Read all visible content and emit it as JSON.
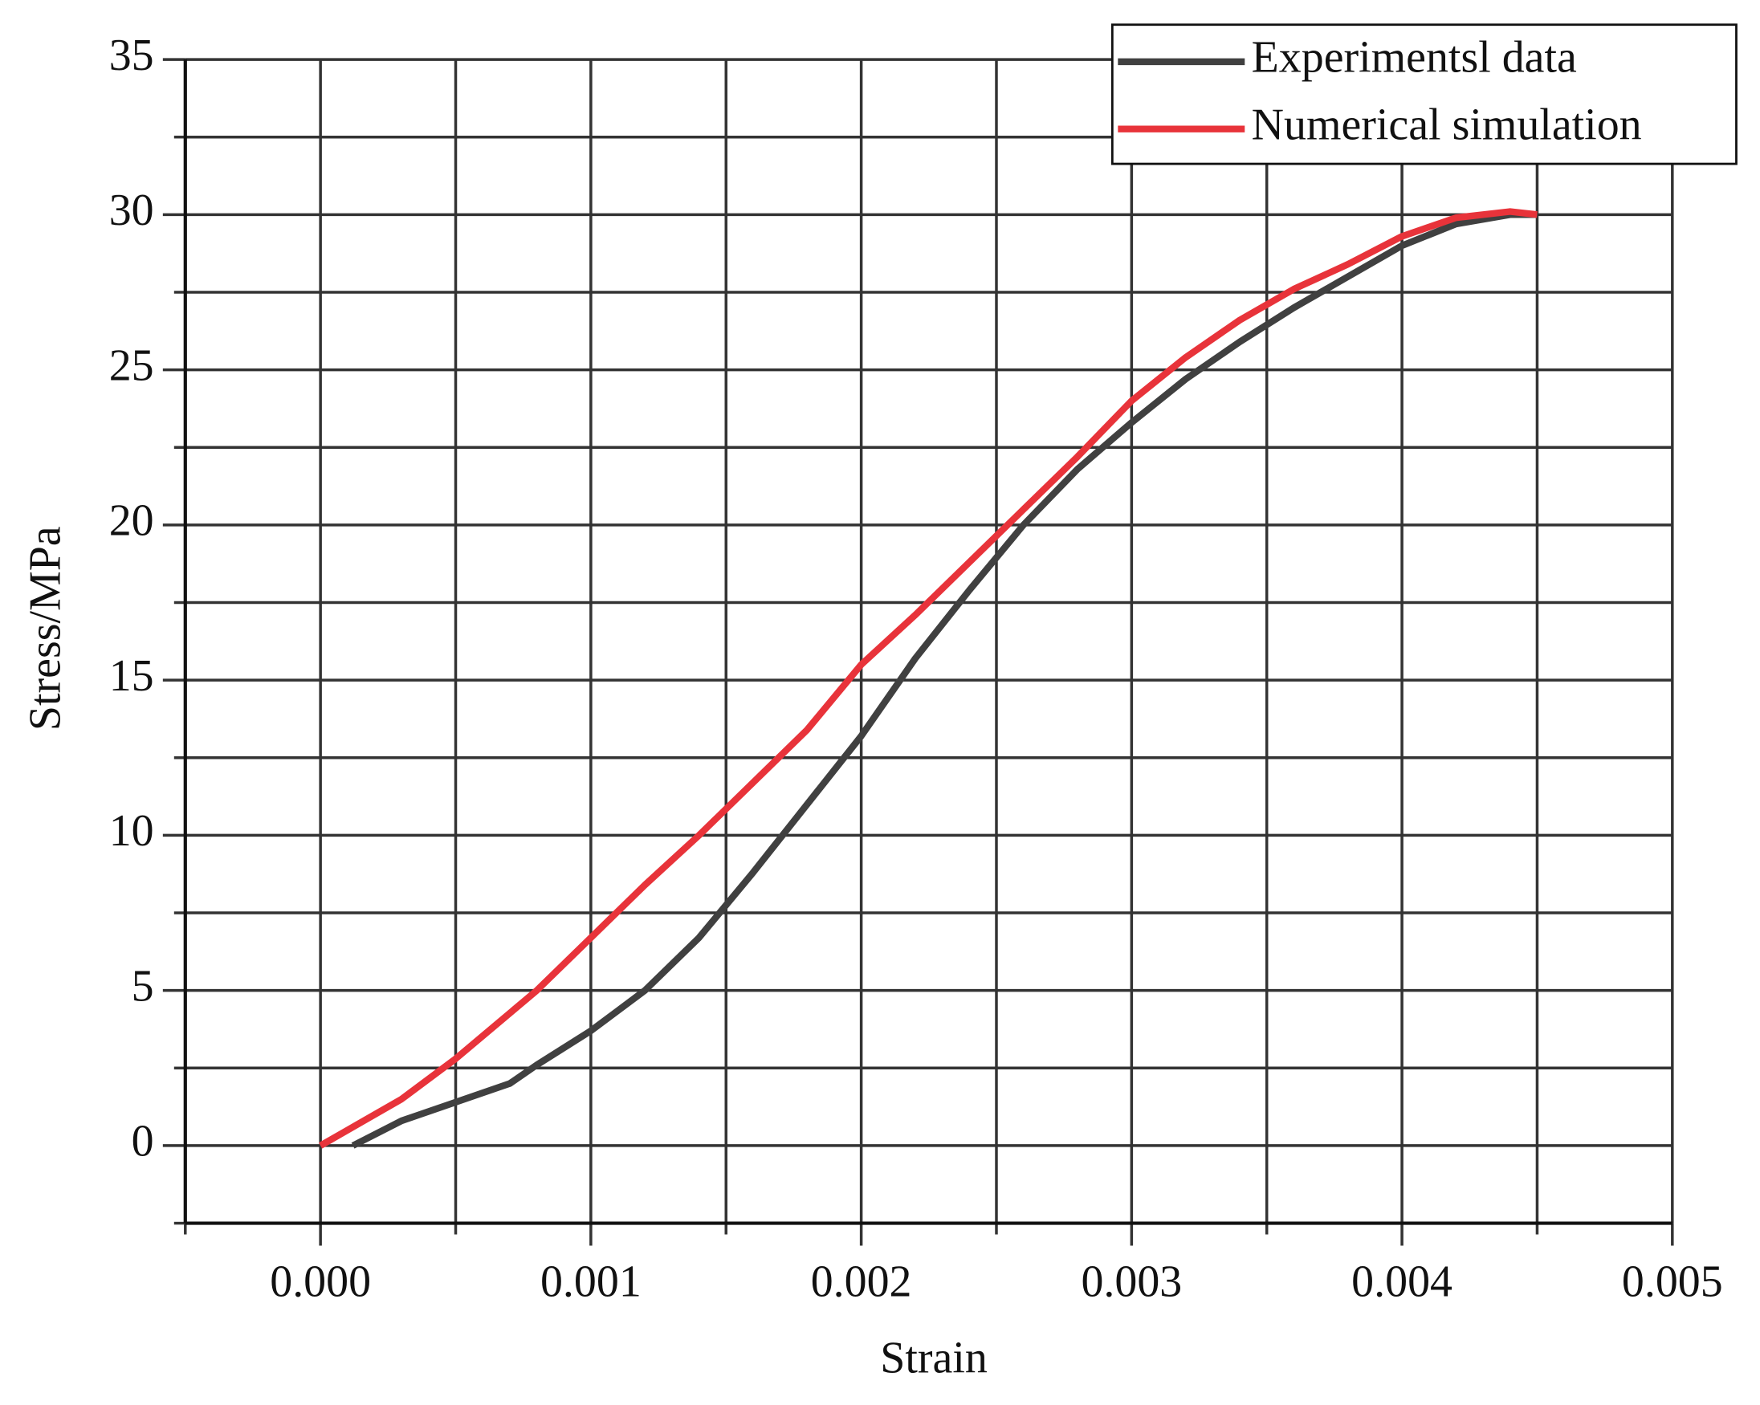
{
  "chart_data": {
    "type": "line",
    "x_label": "Strain",
    "y_label": "Stress/MPa",
    "xlim": [
      -0.0005,
      0.005
    ],
    "ylim": [
      -2.5,
      35
    ],
    "xticks": [
      {
        "value": 0,
        "label": "0.000"
      },
      {
        "value": 0.001,
        "label": "0.001"
      },
      {
        "value": 0.002,
        "label": "0.002"
      },
      {
        "value": 0.003,
        "label": "0.003"
      },
      {
        "value": 0.004,
        "label": "0.004"
      },
      {
        "value": 0.005,
        "label": "0.005"
      }
    ],
    "x_minor_ticks": [
      -0.0005,
      0.0005,
      0.0015,
      0.0025,
      0.0035,
      0.0045
    ],
    "yticks": [
      0,
      5,
      10,
      15,
      20,
      25,
      30,
      35
    ],
    "y_minor_ticks": [
      -2.5,
      2.5,
      7.5,
      12.5,
      17.5,
      22.5,
      27.5,
      32.5
    ],
    "grid": true,
    "legend": "upper right",
    "series": [
      {
        "name": "Experimentsl data",
        "color": "#404040",
        "x": [
          0.00012,
          0.0003,
          0.0005,
          0.0007,
          0.0008,
          0.001,
          0.0012,
          0.0014,
          0.0016,
          0.0018,
          0.002,
          0.0022,
          0.0024,
          0.0026,
          0.0028,
          0.003,
          0.0032,
          0.0034,
          0.0036,
          0.0038,
          0.004,
          0.0042,
          0.0044,
          0.0045
        ],
        "values": [
          0,
          0.8,
          1.4,
          2.0,
          2.6,
          3.7,
          5.0,
          6.7,
          8.8,
          11.0,
          13.2,
          15.7,
          17.9,
          20.0,
          21.8,
          23.3,
          24.7,
          25.9,
          27.0,
          28.0,
          29.0,
          29.7,
          30.0,
          30.0
        ]
      },
      {
        "name": "Numerical simulation",
        "color": "#e8333a",
        "x": [
          0,
          0.0001,
          0.0003,
          0.0005,
          0.0008,
          0.001,
          0.0012,
          0.0014,
          0.0016,
          0.0018,
          0.002,
          0.0022,
          0.0024,
          0.0026,
          0.0028,
          0.003,
          0.0032,
          0.0034,
          0.0036,
          0.0038,
          0.004,
          0.0042,
          0.0044,
          0.0045
        ],
        "values": [
          0,
          0.5,
          1.5,
          2.8,
          5.0,
          6.7,
          8.4,
          10.0,
          11.7,
          13.4,
          15.5,
          17.1,
          18.8,
          20.5,
          22.2,
          24.0,
          25.4,
          26.6,
          27.6,
          28.4,
          29.3,
          29.9,
          30.1,
          30.0
        ]
      }
    ]
  }
}
